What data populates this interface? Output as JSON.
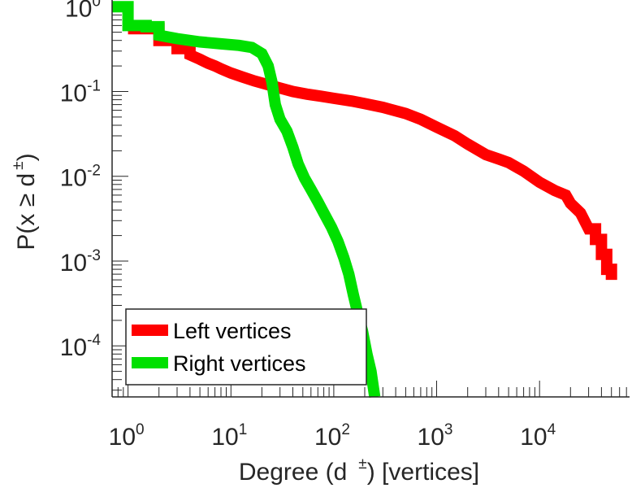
{
  "chart_data": {
    "type": "line",
    "title": "",
    "xscale": "log",
    "yscale": "log",
    "xlim": [
      0.7,
      75000
    ],
    "ylim": [
      2.5e-05,
      1.2
    ],
    "xlabel": {
      "prefix": "Degree (d",
      "superscript": "±",
      "suffix": ") [vertices]"
    },
    "ylabel": {
      "prefix": "P(x ≥ d",
      "superscript": "±",
      "suffix": ")"
    },
    "x_ticks": [
      {
        "value": 1,
        "base": "10",
        "exp": "0"
      },
      {
        "value": 10,
        "base": "10",
        "exp": "1"
      },
      {
        "value": 100,
        "base": "10",
        "exp": "2"
      },
      {
        "value": 1000,
        "base": "10",
        "exp": "3"
      },
      {
        "value": 10000,
        "base": "10",
        "exp": "4"
      }
    ],
    "y_ticks": [
      {
        "value": 1,
        "base": "10",
        "exp": "0"
      },
      {
        "value": 0.1,
        "base": "10",
        "exp": "-1"
      },
      {
        "value": 0.01,
        "base": "10",
        "exp": "-2"
      },
      {
        "value": 0.001,
        "base": "10",
        "exp": "-3"
      },
      {
        "value": 0.0001,
        "base": "10",
        "exp": "-4"
      }
    ],
    "legend_position": "bottom-left",
    "series": [
      {
        "name": "Left vertices",
        "color": "#ff0000",
        "points": [
          [
            1,
            0.55
          ],
          [
            2,
            0.55
          ],
          [
            2,
            0.4
          ],
          [
            3,
            0.4
          ],
          [
            3,
            0.32
          ],
          [
            4,
            0.32
          ],
          [
            4,
            0.27
          ],
          [
            5,
            0.24
          ],
          [
            6,
            0.215
          ],
          [
            7,
            0.2
          ],
          [
            8,
            0.185
          ],
          [
            10,
            0.165
          ],
          [
            13,
            0.148
          ],
          [
            17,
            0.133
          ],
          [
            22,
            0.122
          ],
          [
            30,
            0.11
          ],
          [
            40,
            0.1
          ],
          [
            55,
            0.093
          ],
          [
            75,
            0.088
          ],
          [
            100,
            0.083
          ],
          [
            150,
            0.077
          ],
          [
            200,
            0.072
          ],
          [
            300,
            0.065
          ],
          [
            500,
            0.055
          ],
          [
            700,
            0.047
          ],
          [
            1000,
            0.038
          ],
          [
            1500,
            0.03
          ],
          [
            2000,
            0.024
          ],
          [
            3000,
            0.018
          ],
          [
            4000,
            0.016
          ],
          [
            5000,
            0.0145
          ],
          [
            7000,
            0.0115
          ],
          [
            10000,
            0.0085
          ],
          [
            14000,
            0.0068
          ],
          [
            18000,
            0.006
          ],
          [
            20000,
            0.0048
          ],
          [
            25000,
            0.0037
          ],
          [
            30000,
            0.0024
          ],
          [
            35000,
            0.0024
          ],
          [
            35000,
            0.0018
          ],
          [
            40000,
            0.0018
          ],
          [
            40000,
            0.0012
          ],
          [
            45000,
            0.0012
          ],
          [
            45000,
            0.0008
          ],
          [
            50000,
            0.0008
          ],
          [
            50000,
            0.0006
          ]
        ]
      },
      {
        "name": "Right vertices",
        "color": "#00e000",
        "points": [
          [
            0.7,
            1
          ],
          [
            1,
            1
          ],
          [
            1,
            0.6
          ],
          [
            1.5,
            0.6
          ],
          [
            1.5,
            0.58
          ],
          [
            2,
            0.58
          ],
          [
            2,
            0.46
          ],
          [
            3,
            0.42
          ],
          [
            5,
            0.385
          ],
          [
            8,
            0.365
          ],
          [
            12,
            0.35
          ],
          [
            16,
            0.33
          ],
          [
            20,
            0.28
          ],
          [
            23,
            0.2
          ],
          [
            25,
            0.13
          ],
          [
            27,
            0.07
          ],
          [
            30,
            0.047
          ],
          [
            35,
            0.034
          ],
          [
            40,
            0.022
          ],
          [
            45,
            0.014
          ],
          [
            52,
            0.0095
          ],
          [
            60,
            0.007
          ],
          [
            70,
            0.005
          ],
          [
            80,
            0.0037
          ],
          [
            95,
            0.0025
          ],
          [
            110,
            0.0017
          ],
          [
            125,
            0.0011
          ],
          [
            140,
            0.0007
          ],
          [
            155,
            0.0004
          ],
          [
            170,
            0.00025
          ],
          [
            190,
            0.00015
          ],
          [
            210,
            8e-05
          ],
          [
            230,
            5e-05
          ],
          [
            250,
            2.5e-05
          ]
        ]
      }
    ]
  }
}
